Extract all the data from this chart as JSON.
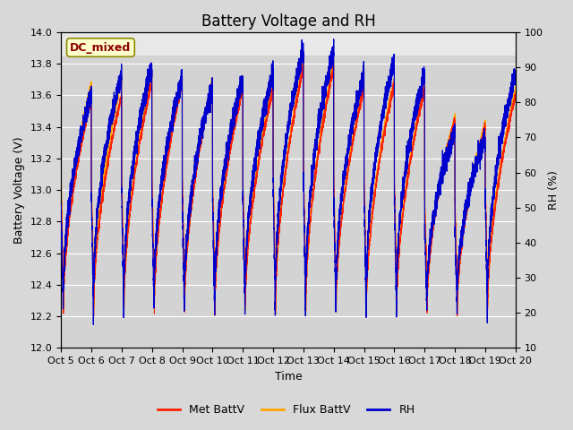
{
  "title": "Battery Voltage and RH",
  "xlabel": "Time",
  "ylabel_left": "Battery Voltage (V)",
  "ylabel_right": "RH (%)",
  "ylim_left": [
    12.0,
    14.0
  ],
  "ylim_right": [
    10,
    100
  ],
  "annotation": "DC_mixed",
  "annotation_color": "#8B0000",
  "annotation_bg": "#FFFFCC",
  "annotation_border": "#8B8B00",
  "xtick_labels": [
    "Oct 5",
    "Oct 6",
    "Oct 7",
    "Oct 8",
    "Oct 9",
    "Oct 10",
    "Oct 11",
    "Oct 12",
    "Oct 13",
    "Oct 14",
    "Oct 15",
    "Oct 16",
    "Oct 17",
    "Oct 18",
    "Oct 19",
    "Oct 20"
  ],
  "met_battv_color": "#FF2200",
  "flux_battv_color": "#FFA500",
  "rh_color": "#0000CD",
  "legend_labels": [
    "Met BattV",
    "Flux BattV",
    "RH"
  ],
  "background_color": "#D8D8D8",
  "plot_bg": "#D3D3D3",
  "plot_bg_top": "#E8E8E8",
  "grid_color": "#FFFFFF",
  "title_fontsize": 12,
  "label_fontsize": 9,
  "tick_fontsize": 8
}
